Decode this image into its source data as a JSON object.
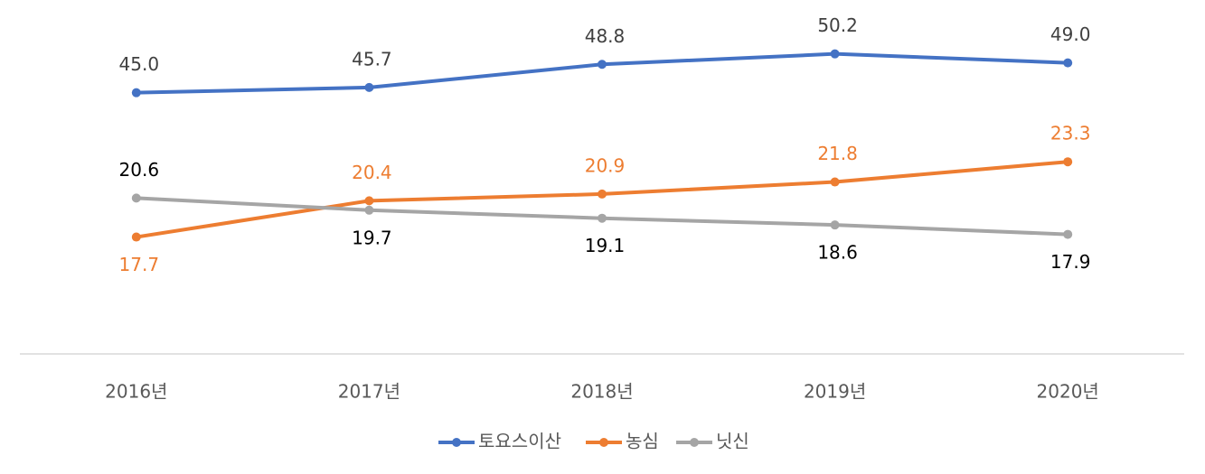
{
  "chart_data": {
    "type": "line",
    "categories": [
      "2016년",
      "2017년",
      "2018년",
      "2019년",
      "2020년"
    ],
    "series": [
      {
        "name": "토요스이산",
        "color": "#4472c4",
        "values": [
          45.0,
          45.7,
          48.8,
          50.2,
          49.0
        ],
        "value_labels": [
          "45.0",
          "45.7",
          "48.8",
          "50.2",
          "49.0"
        ],
        "axis": "y2"
      },
      {
        "name": "농심",
        "color": "#ed7d31",
        "values": [
          17.7,
          20.4,
          20.9,
          21.8,
          23.3
        ]
      },
      {
        "name": "닛신",
        "color": "#a5a5a5",
        "values": [
          20.6,
          19.7,
          19.1,
          18.6,
          17.9
        ]
      }
    ],
    "ylim": [
      9,
      34
    ],
    "y2lim": [
      10,
      55
    ],
    "legend": "bottom"
  }
}
